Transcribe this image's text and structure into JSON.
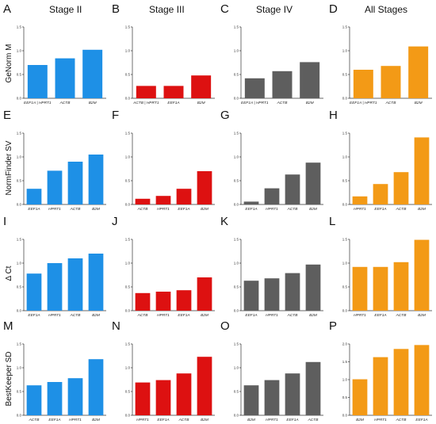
{
  "colors": {
    "col0": "#1e90e6",
    "col1": "#dd1111",
    "col2": "#5e5e5e",
    "col3": "#f39a16"
  },
  "stage_titles": [
    "Stage II",
    "Stage III",
    "Stage IV",
    "All Stages"
  ],
  "row_labels": [
    "GeNorm M",
    "NormFinder SV",
    "Δ Ct",
    "BestKeeper SD"
  ],
  "chart_data": [
    {
      "letter": "A",
      "type": "bar",
      "row": 0,
      "col": 0,
      "categories": [
        "EEF1A | HPRT1",
        "ACTB",
        "B2M"
      ],
      "values": [
        0.7,
        0.84,
        1.02
      ],
      "ylim": [
        0,
        1.5
      ],
      "yticks": [
        "0.0",
        "0.5",
        "1.0",
        "1.5"
      ]
    },
    {
      "letter": "B",
      "type": "bar",
      "row": 0,
      "col": 1,
      "categories": [
        "ACTB | HPRT1",
        "EEF1A",
        "B2M"
      ],
      "values": [
        0.26,
        0.26,
        0.48
      ],
      "ylim": [
        0,
        1.5
      ],
      "yticks": [
        "0.0",
        "0.5",
        "1.0",
        "1.5"
      ]
    },
    {
      "letter": "C",
      "type": "bar",
      "row": 0,
      "col": 2,
      "categories": [
        "EEF1A | HPRT1",
        "ACTB",
        "B2M"
      ],
      "values": [
        0.42,
        0.57,
        0.76
      ],
      "ylim": [
        0,
        1.5
      ],
      "yticks": [
        "0.0",
        "0.5",
        "1.0",
        "1.5"
      ]
    },
    {
      "letter": "D",
      "type": "bar",
      "row": 0,
      "col": 3,
      "categories": [
        "EEF1A | HPRT1",
        "ACTB",
        "B2M"
      ],
      "values": [
        0.6,
        0.68,
        1.09
      ],
      "ylim": [
        0,
        1.5
      ],
      "yticks": [
        "0.0",
        "0.5",
        "1.0",
        "1.5"
      ]
    },
    {
      "letter": "E",
      "type": "bar",
      "row": 1,
      "col": 0,
      "categories": [
        "EEF1A",
        "HPRT1",
        "ACTB",
        "B2M"
      ],
      "values": [
        0.33,
        0.71,
        0.9,
        1.05
      ],
      "ylim": [
        0,
        1.5
      ],
      "yticks": [
        "0.0",
        "0.5",
        "1.0",
        "1.5"
      ]
    },
    {
      "letter": "F",
      "type": "bar",
      "row": 1,
      "col": 1,
      "categories": [
        "ACTB",
        "HPRT1",
        "EEF1A",
        "B2M"
      ],
      "values": [
        0.12,
        0.18,
        0.33,
        0.7
      ],
      "ylim": [
        0,
        1.5
      ],
      "yticks": [
        "0.0",
        "0.5",
        "1.0",
        "1.5"
      ]
    },
    {
      "letter": "G",
      "type": "bar",
      "row": 1,
      "col": 2,
      "categories": [
        "EEF1A",
        "HPRT1",
        "ACTB",
        "B2M"
      ],
      "values": [
        0.06,
        0.34,
        0.63,
        0.88
      ],
      "ylim": [
        0,
        1.5
      ],
      "yticks": [
        "0.0",
        "0.5",
        "1.0",
        "1.5"
      ]
    },
    {
      "letter": "H",
      "type": "bar",
      "row": 1,
      "col": 3,
      "categories": [
        "HPRT1",
        "EEF1A",
        "ACTB",
        "B2M"
      ],
      "values": [
        0.17,
        0.43,
        0.68,
        1.41
      ],
      "ylim": [
        0,
        1.5
      ],
      "yticks": [
        "0.0",
        "0.5",
        "1.0",
        "1.5"
      ]
    },
    {
      "letter": "I",
      "type": "bar",
      "row": 2,
      "col": 0,
      "categories": [
        "EEF1A",
        "HPRT1",
        "ACTB",
        "B2M"
      ],
      "values": [
        0.78,
        1.0,
        1.1,
        1.2
      ],
      "ylim": [
        0,
        1.5
      ],
      "yticks": [
        "0.0",
        "0.5",
        "1.0",
        "1.5"
      ]
    },
    {
      "letter": "J",
      "type": "bar",
      "row": 2,
      "col": 1,
      "categories": [
        "ACTB",
        "HPRT1",
        "EEF1A",
        "B2M"
      ],
      "values": [
        0.37,
        0.4,
        0.43,
        0.7
      ],
      "ylim": [
        0,
        1.5
      ],
      "yticks": [
        "0.0",
        "0.5",
        "1.0",
        "1.5"
      ]
    },
    {
      "letter": "K",
      "type": "bar",
      "row": 2,
      "col": 2,
      "categories": [
        "EEF1A",
        "HPRT1",
        "ACTB",
        "B2M"
      ],
      "values": [
        0.63,
        0.68,
        0.79,
        0.97
      ],
      "ylim": [
        0,
        1.5
      ],
      "yticks": [
        "0.0",
        "0.5",
        "1.0",
        "1.5"
      ]
    },
    {
      "letter": "L",
      "type": "bar",
      "row": 2,
      "col": 3,
      "categories": [
        "HPRT1",
        "EEF1A",
        "ACTB",
        "B2M"
      ],
      "values": [
        0.92,
        0.92,
        1.02,
        1.49
      ],
      "ylim": [
        0,
        1.5
      ],
      "yticks": [
        "0.0",
        "0.5",
        "1.0",
        "1.5"
      ]
    },
    {
      "letter": "M",
      "type": "bar",
      "row": 3,
      "col": 0,
      "categories": [
        "ACTB",
        "EEF1A",
        "HPRT1",
        "B2M"
      ],
      "values": [
        0.63,
        0.7,
        0.78,
        1.18
      ],
      "ylim": [
        0,
        1.5
      ],
      "yticks": [
        "0.0",
        "0.5",
        "1.0",
        "1.5"
      ]
    },
    {
      "letter": "N",
      "type": "bar",
      "row": 3,
      "col": 1,
      "categories": [
        "HPRT1",
        "EEF1A",
        "ACTB",
        "B2M"
      ],
      "values": [
        0.69,
        0.74,
        0.88,
        1.23
      ],
      "ylim": [
        0,
        1.5
      ],
      "yticks": [
        "0.0",
        "0.5",
        "1.0",
        "1.5"
      ]
    },
    {
      "letter": "O",
      "type": "bar",
      "row": 3,
      "col": 2,
      "categories": [
        "B2M",
        "HPRT1",
        "EEF1A",
        "ACTB"
      ],
      "values": [
        0.63,
        0.74,
        0.88,
        1.12
      ],
      "ylim": [
        0,
        1.5
      ],
      "yticks": [
        "0.0",
        "0.5",
        "1.0",
        "1.5"
      ]
    },
    {
      "letter": "P",
      "type": "bar",
      "row": 3,
      "col": 3,
      "categories": [
        "B2M",
        "HPRT1",
        "ACTB",
        "EEF1A"
      ],
      "values": [
        1.01,
        1.63,
        1.86,
        1.97
      ],
      "ylim": [
        0,
        2.0
      ],
      "yticks": [
        "0.0",
        "0.5",
        "1.0",
        "1.5",
        "2.0"
      ]
    }
  ]
}
